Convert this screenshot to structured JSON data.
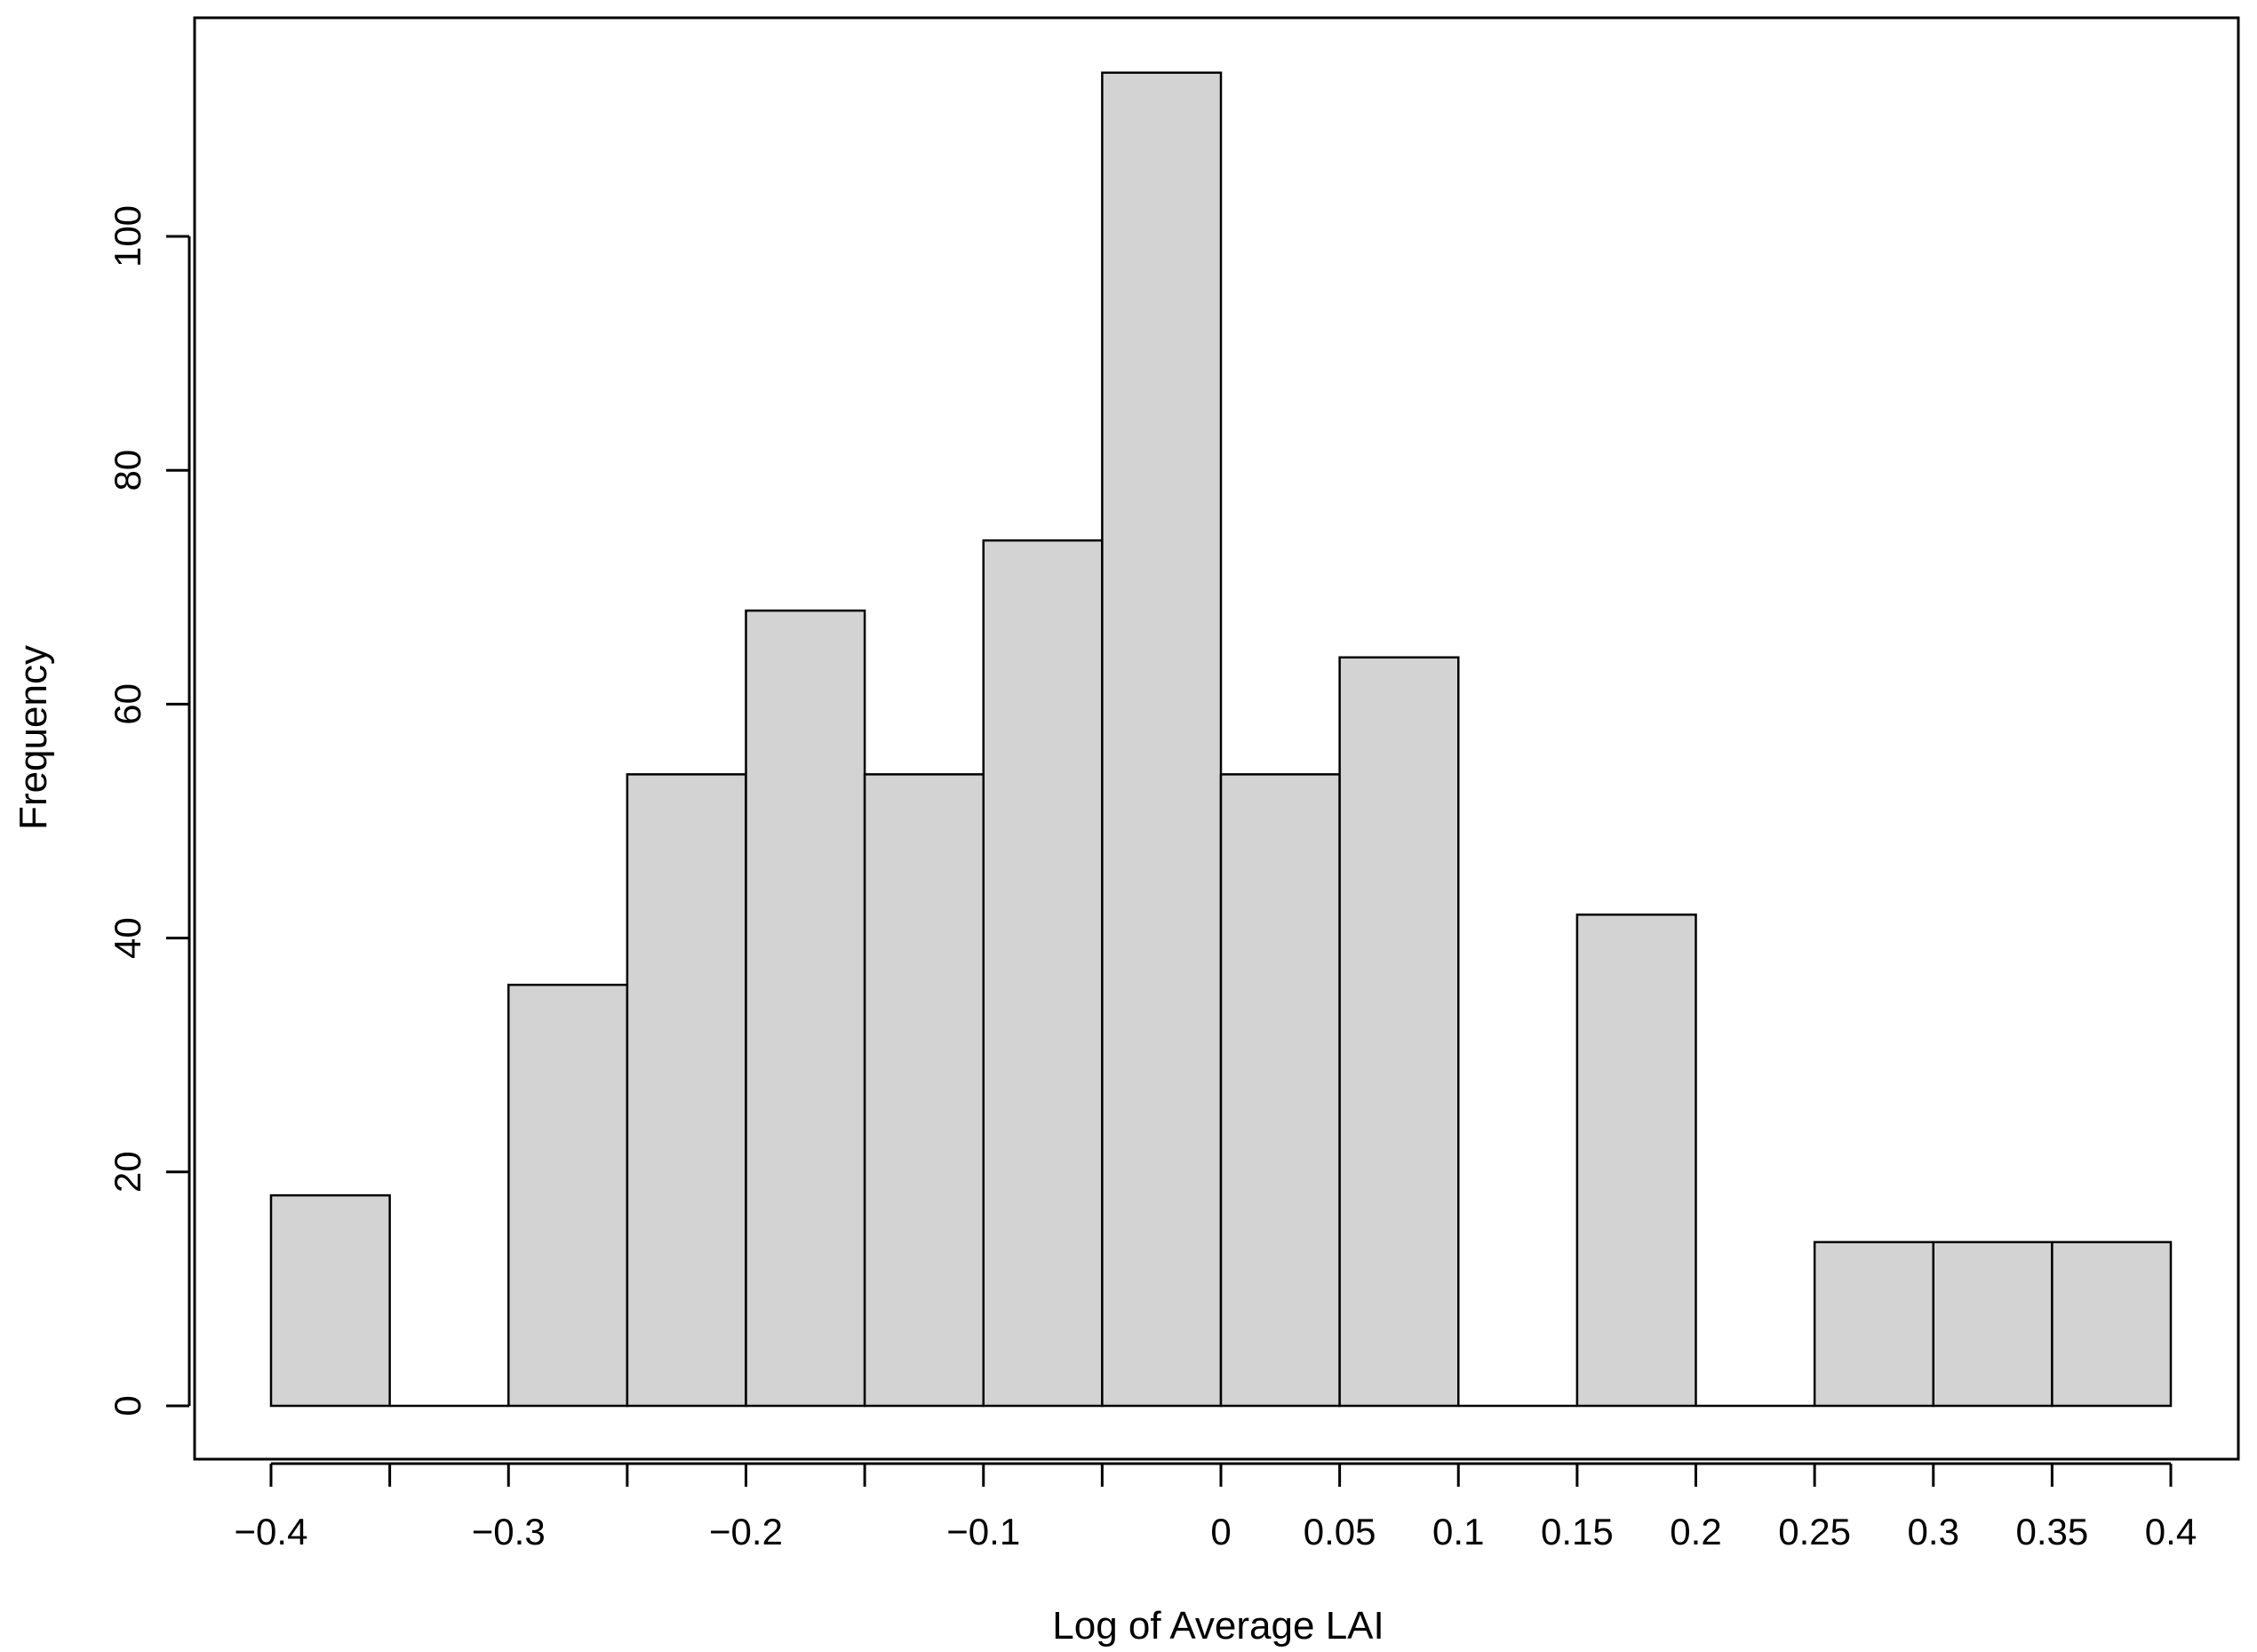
{
  "chart_data": {
    "type": "bar",
    "title": "",
    "xlabel": "Log of Average LAI",
    "ylabel": "Frequency",
    "bin_edges": [
      -0.4,
      -0.35,
      -0.3,
      -0.25,
      -0.2,
      -0.15,
      -0.1,
      -0.05,
      0,
      0.05,
      0.1,
      0.15,
      0.2,
      0.25,
      0.3,
      0.35,
      0.4
    ],
    "values": [
      18,
      0,
      36,
      54,
      68,
      54,
      74,
      114,
      54,
      64,
      0,
      42,
      0,
      14,
      14,
      14
    ],
    "xlim": [
      -0.4,
      0.4
    ],
    "ylim": [
      0,
      114
    ],
    "x_ticks": [
      -0.4,
      -0.35,
      -0.3,
      -0.25,
      -0.2,
      -0.15,
      -0.1,
      -0.05,
      0,
      0.05,
      0.1,
      0.15,
      0.2,
      0.25,
      0.3,
      0.35,
      0.4
    ],
    "x_tick_labels": [
      {
        "value": -0.4,
        "label": "−0.4"
      },
      {
        "value": -0.3,
        "label": "−0.3"
      },
      {
        "value": -0.2,
        "label": "−0.2"
      },
      {
        "value": -0.1,
        "label": "−0.1"
      },
      {
        "value": 0,
        "label": "0"
      },
      {
        "value": 0.05,
        "label": "0.05"
      },
      {
        "value": 0.1,
        "label": "0.1"
      },
      {
        "value": 0.15,
        "label": "0.15"
      },
      {
        "value": 0.2,
        "label": "0.2"
      },
      {
        "value": 0.25,
        "label": "0.25"
      },
      {
        "value": 0.3,
        "label": "0.3"
      },
      {
        "value": 0.35,
        "label": "0.35"
      },
      {
        "value": 0.4,
        "label": "0.4"
      }
    ],
    "y_ticks": [
      0,
      20,
      40,
      60,
      80,
      100
    ],
    "y_tick_labels": [
      "0",
      "20",
      "40",
      "60",
      "80",
      "100"
    ],
    "grid": false,
    "legend": "none",
    "bar_color": "#d3d3d3",
    "edge_color": "#000000"
  }
}
